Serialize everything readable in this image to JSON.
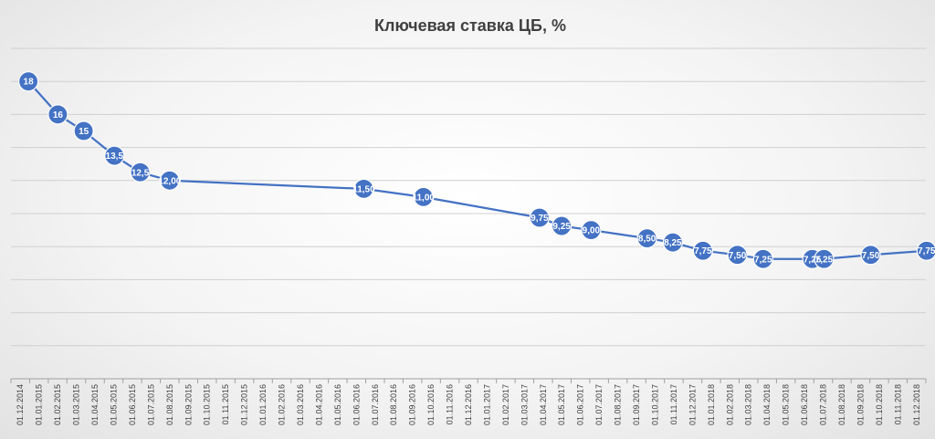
{
  "chart_data": {
    "type": "line",
    "title": "Ключевая ставка ЦБ, %",
    "xlabel": "",
    "ylabel": "",
    "ylim": [
      0,
      20
    ],
    "y_grid_step": 2,
    "grid": true,
    "legend": "none",
    "x_tick_labels": [
      "01.12.2014",
      "01.01.2015",
      "01.02.2015",
      "01.03.2015",
      "01.04.2015",
      "01.05.2015",
      "01.06.2015",
      "01.07.2015",
      "01.08.2015",
      "01.09.2015",
      "01.10.2015",
      "01.11.2015",
      "01.12.2015",
      "01.01.2016",
      "01.02.2016",
      "01.03.2016",
      "01.04.2016",
      "01.05.2016",
      "01.06.2016",
      "01.07.2016",
      "01.08.2016",
      "01.09.2016",
      "01.10.2016",
      "01.11.2016",
      "01.12.2016",
      "01.01.2017",
      "01.02.2017",
      "01.03.2017",
      "01.04.2017",
      "01.05.2017",
      "01.06.2017",
      "01.07.2017",
      "01.08.2017",
      "01.09.2017",
      "01.10.2017",
      "01.11.2017",
      "01.12.2017",
      "01.01.2018",
      "01.02.2018",
      "01.03.2018",
      "01.04.2018",
      "01.05.2018",
      "01.06.2018",
      "01.07.2018",
      "01.08.2018",
      "01.09.2018",
      "01.10.2018",
      "01.11.2018",
      "01.12.2018"
    ],
    "series": [
      {
        "color": "#4472c4",
        "points": [
          {
            "x": "16.12.2014",
            "y": 18,
            "label": "18"
          },
          {
            "x": "02.02.2015",
            "y": 16,
            "label": "16"
          },
          {
            "x": "16.03.2015",
            "y": 15,
            "label": "15"
          },
          {
            "x": "05.05.2015",
            "y": 13.5,
            "label": "13,5"
          },
          {
            "x": "16.06.2015",
            "y": 12.5,
            "label": "12,5"
          },
          {
            "x": "03.08.2015",
            "y": 12,
            "label": "12,00"
          },
          {
            "x": "14.06.2016",
            "y": 11.5,
            "label": "11,50"
          },
          {
            "x": "19.09.2016",
            "y": 11,
            "label": "11,00"
          },
          {
            "x": "27.03.2017",
            "y": 9.75,
            "label": "9,75"
          },
          {
            "x": "02.05.2017",
            "y": 9.25,
            "label": "9,25"
          },
          {
            "x": "19.06.2017",
            "y": 9,
            "label": "9,00"
          },
          {
            "x": "18.09.2017",
            "y": 8.5,
            "label": "8,50"
          },
          {
            "x": "30.10.2017",
            "y": 8.25,
            "label": "8,25"
          },
          {
            "x": "18.12.2017",
            "y": 7.75,
            "label": "7,75"
          },
          {
            "x": "12.02.2018",
            "y": 7.5,
            "label": "7,50"
          },
          {
            "x": "26.03.2018",
            "y": 7.25,
            "label": "7,25"
          },
          {
            "x": "14.06.2018",
            "y": 7.25,
            "label": "7,25"
          },
          {
            "x": "03.07.2018",
            "y": 7.25,
            "label": "7,25"
          },
          {
            "x": "17.09.2018",
            "y": 7.5,
            "label": "7,50"
          },
          {
            "x": "17.12.2018",
            "y": 7.75,
            "label": "7,75"
          }
        ]
      }
    ]
  }
}
